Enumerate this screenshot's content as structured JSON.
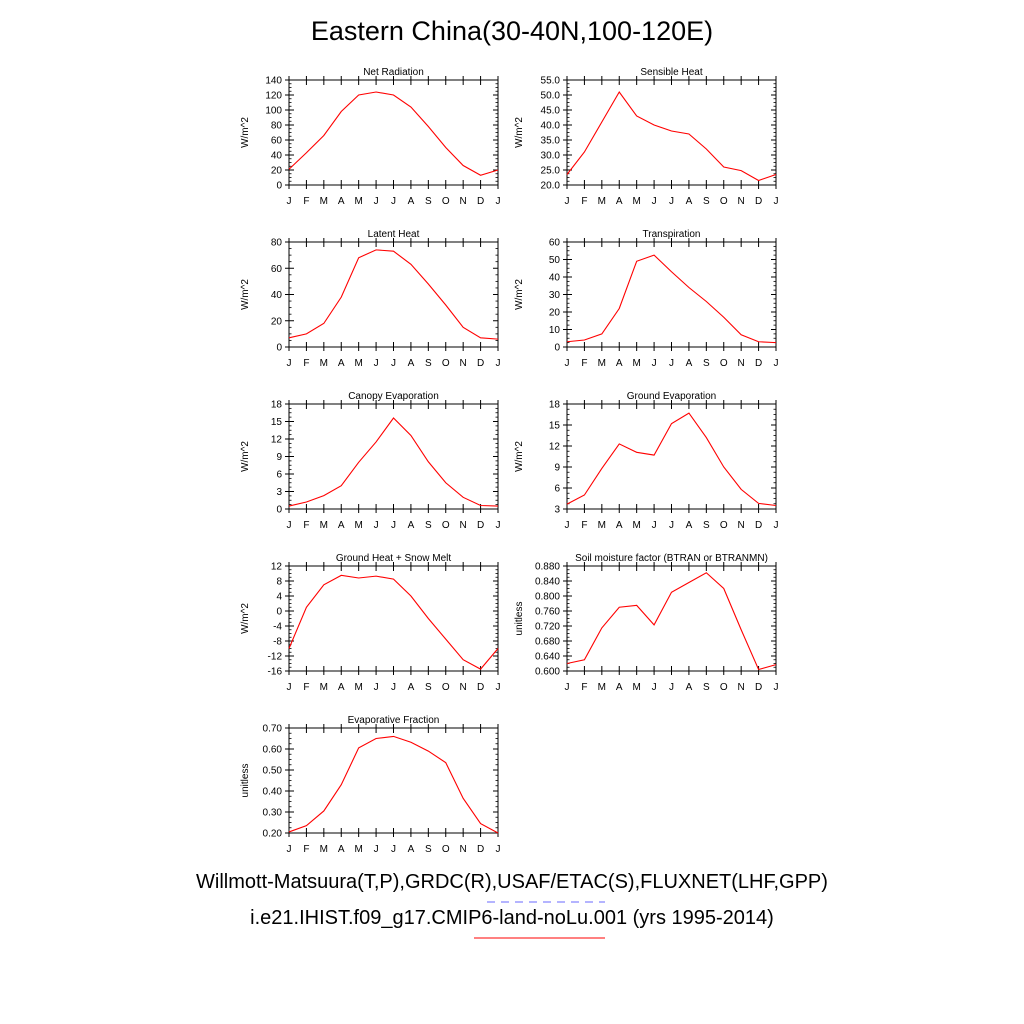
{
  "title": "Eastern China(30-40N,100-120E)",
  "footer": {
    "observations_line": "Willmott-Matsuura(T,P),GRDC(R),USAF/ETAC(S),FLUXNET(LHF,GPP)",
    "model_line": "i.e21.IHIST.f09_g17.CMIP6-land-noLu.001 (yrs 1995-2014)",
    "observations_color": "#6a6aff",
    "model_color": "#ff0000"
  },
  "chart_data": [
    {
      "type": "line",
      "title": "Net Radiation",
      "ylabel": "W/m^2",
      "categories": [
        "J",
        "F",
        "M",
        "A",
        "M",
        "J",
        "J",
        "A",
        "S",
        "O",
        "N",
        "D",
        "J"
      ],
      "ylim": [
        0,
        140
      ],
      "yticks": [
        "0",
        "20",
        "40",
        "60",
        "80",
        "100",
        "120",
        "140"
      ],
      "series": [
        {
          "color": "#ff0000",
          "values": [
            21,
            43,
            66,
            98,
            120,
            124,
            120,
            104,
            78,
            50,
            26,
            13,
            20
          ]
        }
      ]
    },
    {
      "type": "line",
      "title": "Sensible Heat",
      "ylabel": "W/m^2",
      "categories": [
        "J",
        "F",
        "M",
        "A",
        "M",
        "J",
        "J",
        "A",
        "S",
        "O",
        "N",
        "D",
        "J"
      ],
      "ylim": [
        20,
        55
      ],
      "yticks": [
        "20.0",
        "25.0",
        "30.0",
        "35.0",
        "40.0",
        "45.0",
        "50.0",
        "55.0"
      ],
      "series": [
        {
          "color": "#ff0000",
          "values": [
            23.5,
            31,
            41,
            51,
            43,
            40,
            38,
            37,
            32,
            26,
            24.8,
            21.5,
            23.5
          ]
        }
      ]
    },
    {
      "type": "line",
      "title": "Latent Heat",
      "ylabel": "W/m^2",
      "categories": [
        "J",
        "F",
        "M",
        "A",
        "M",
        "J",
        "J",
        "A",
        "S",
        "O",
        "N",
        "D",
        "J"
      ],
      "ylim": [
        0,
        80
      ],
      "yticks": [
        "0",
        "20",
        "40",
        "60",
        "80"
      ],
      "series": [
        {
          "color": "#ff0000",
          "values": [
            7,
            10,
            18,
            38,
            68,
            74,
            73,
            63,
            48,
            32,
            15,
            7,
            6
          ]
        }
      ]
    },
    {
      "type": "line",
      "title": "Transpiration",
      "ylabel": "W/m^2",
      "categories": [
        "J",
        "F",
        "M",
        "A",
        "M",
        "J",
        "J",
        "A",
        "S",
        "O",
        "N",
        "D",
        "J"
      ],
      "ylim": [
        0,
        60
      ],
      "yticks": [
        "0",
        "10",
        "20",
        "30",
        "40",
        "50",
        "60"
      ],
      "series": [
        {
          "color": "#ff0000",
          "values": [
            3,
            4,
            7.5,
            22,
            49,
            52.5,
            43,
            34,
            26,
            17,
            7,
            3,
            2.5
          ]
        }
      ]
    },
    {
      "type": "line",
      "title": "Canopy Evaporation",
      "ylabel": "W/m^2",
      "categories": [
        "J",
        "F",
        "M",
        "A",
        "M",
        "J",
        "J",
        "A",
        "S",
        "O",
        "N",
        "D",
        "J"
      ],
      "ylim": [
        0,
        18
      ],
      "yticks": [
        "0",
        "3",
        "6",
        "9",
        "12",
        "15",
        "18"
      ],
      "series": [
        {
          "color": "#ff0000",
          "values": [
            0.5,
            1.2,
            2.3,
            4,
            8,
            11.5,
            15.6,
            12.6,
            8.1,
            4.5,
            2,
            0.6,
            0.5
          ]
        }
      ]
    },
    {
      "type": "line",
      "title": "Ground Evaporation",
      "ylabel": "W/m^2",
      "categories": [
        "J",
        "F",
        "M",
        "A",
        "M",
        "J",
        "J",
        "A",
        "S",
        "O",
        "N",
        "D",
        "J"
      ],
      "ylim": [
        3,
        18
      ],
      "yticks": [
        "3",
        "6",
        "9",
        "12",
        "15",
        "18"
      ],
      "series": [
        {
          "color": "#ff0000",
          "values": [
            3.7,
            5,
            8.8,
            12.3,
            11.1,
            10.7,
            15.2,
            16.7,
            13.2,
            9,
            5.8,
            3.8,
            3.5
          ]
        }
      ]
    },
    {
      "type": "line",
      "title": "Ground Heat + Snow Melt",
      "ylabel": "W/m^2",
      "categories": [
        "J",
        "F",
        "M",
        "A",
        "M",
        "J",
        "J",
        "A",
        "S",
        "O",
        "N",
        "D",
        "J"
      ],
      "ylim": [
        -16,
        12
      ],
      "yticks": [
        "-16",
        "-12",
        "-8",
        "-4",
        "0",
        "4",
        "8",
        "12"
      ],
      "series": [
        {
          "color": "#ff0000",
          "values": [
            -10,
            1,
            7,
            9.5,
            8.8,
            9.3,
            8.5,
            4,
            -2,
            -7.5,
            -13,
            -15.5,
            -10
          ]
        }
      ]
    },
    {
      "type": "line",
      "title": "Soil moisture factor (BTRAN or BTRANMN)",
      "ylabel": "unitless",
      "categories": [
        "J",
        "F",
        "M",
        "A",
        "M",
        "J",
        "J",
        "A",
        "S",
        "O",
        "N",
        "D",
        "J"
      ],
      "ylim": [
        0.6,
        0.88
      ],
      "yticks": [
        "0.600",
        "0.640",
        "0.680",
        "0.720",
        "0.760",
        "0.800",
        "0.840",
        "0.880"
      ],
      "series": [
        {
          "color": "#ff0000",
          "values": [
            0.62,
            0.63,
            0.715,
            0.77,
            0.775,
            0.723,
            0.81,
            0.836,
            0.862,
            0.82,
            0.71,
            0.604,
            0.617
          ]
        }
      ]
    },
    {
      "type": "line",
      "title": "Evaporative Fraction",
      "ylabel": "unitless",
      "categories": [
        "J",
        "F",
        "M",
        "A",
        "M",
        "J",
        "J",
        "A",
        "S",
        "O",
        "N",
        "D",
        "J"
      ],
      "ylim": [
        0.2,
        0.7
      ],
      "yticks": [
        "0.20",
        "0.30",
        "0.40",
        "0.50",
        "0.60",
        "0.70"
      ],
      "series": [
        {
          "color": "#ff0000",
          "values": [
            0.205,
            0.235,
            0.305,
            0.43,
            0.605,
            0.65,
            0.66,
            0.632,
            0.59,
            0.535,
            0.365,
            0.245,
            0.2
          ]
        }
      ]
    }
  ]
}
